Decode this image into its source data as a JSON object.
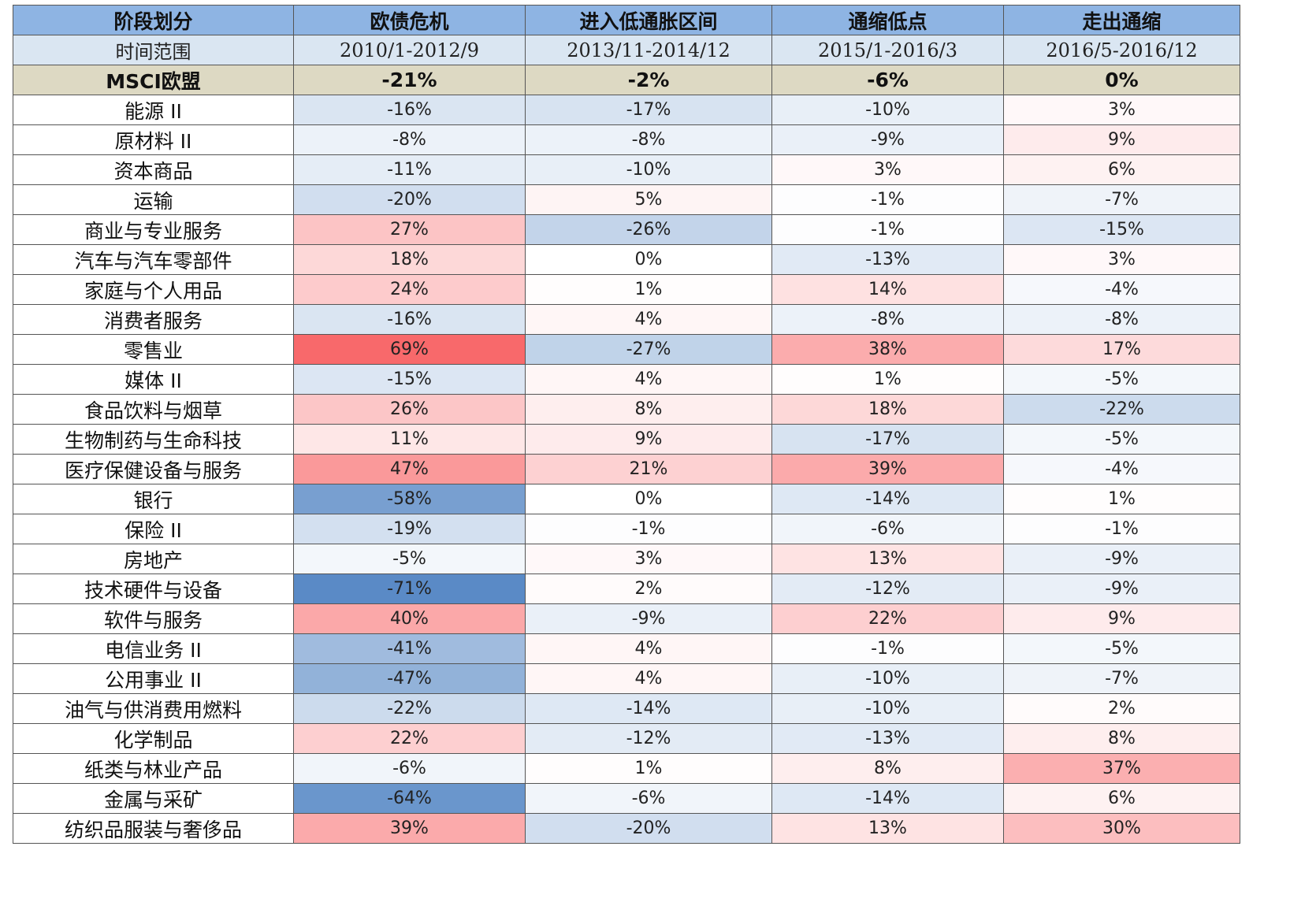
{
  "chart_data": {
    "type": "table",
    "columns": [
      "阶段划分",
      "欧债危机",
      "进入低通胀区间",
      "通缩低点",
      "走出通缩"
    ],
    "range_row": {
      "label": "时间范围",
      "values": [
        "2010/1-2012/9",
        "2013/11-2014/12",
        "2015/1-2016/3",
        "2016/5-2016/12"
      ]
    },
    "index_row": {
      "label": "MSCI欧盟",
      "values": [
        "-21%",
        "-2%",
        "-6%",
        "0%"
      ]
    },
    "rows": [
      {
        "label": "能源 II",
        "values": [
          -16,
          -17,
          -10,
          3
        ]
      },
      {
        "label": "原材料 II",
        "values": [
          -8,
          -8,
          -9,
          9
        ]
      },
      {
        "label": "资本商品",
        "values": [
          -11,
          -10,
          3,
          6
        ]
      },
      {
        "label": "运输",
        "values": [
          -20,
          5,
          -1,
          -7
        ]
      },
      {
        "label": "商业与专业服务",
        "values": [
          27,
          -26,
          -1,
          -15
        ]
      },
      {
        "label": "汽车与汽车零部件",
        "values": [
          18,
          0,
          -13,
          3
        ]
      },
      {
        "label": "家庭与个人用品",
        "values": [
          24,
          1,
          14,
          -4
        ]
      },
      {
        "label": "消费者服务",
        "values": [
          -16,
          4,
          -8,
          -8
        ]
      },
      {
        "label": "零售业",
        "values": [
          69,
          -27,
          38,
          17
        ]
      },
      {
        "label": "媒体 II",
        "values": [
          -15,
          4,
          1,
          -5
        ]
      },
      {
        "label": "食品饮料与烟草",
        "values": [
          26,
          8,
          18,
          -22
        ]
      },
      {
        "label": "生物制药与生命科技",
        "values": [
          11,
          9,
          -17,
          -5
        ]
      },
      {
        "label": "医疗保健设备与服务",
        "values": [
          47,
          21,
          39,
          -4
        ]
      },
      {
        "label": "银行",
        "values": [
          -58,
          0,
          -14,
          1
        ]
      },
      {
        "label": "保险 II",
        "values": [
          -19,
          -1,
          -6,
          -1
        ]
      },
      {
        "label": "房地产",
        "values": [
          -5,
          3,
          13,
          -9
        ]
      },
      {
        "label": "技术硬件与设备",
        "values": [
          -71,
          2,
          -12,
          -9
        ]
      },
      {
        "label": "软件与服务",
        "values": [
          40,
          -9,
          22,
          9
        ]
      },
      {
        "label": "电信业务 II",
        "values": [
          -41,
          4,
          -1,
          -5
        ]
      },
      {
        "label": "公用事业 II",
        "values": [
          -47,
          4,
          -10,
          -7
        ]
      },
      {
        "label": "油气与供消费用燃料",
        "values": [
          -22,
          -14,
          -10,
          2
        ]
      },
      {
        "label": "化学制品",
        "values": [
          22,
          -12,
          -13,
          8
        ]
      },
      {
        "label": "纸类与林业产品",
        "values": [
          -6,
          1,
          8,
          37
        ]
      },
      {
        "label": "金属与采矿",
        "values": [
          -64,
          -6,
          -14,
          6
        ]
      },
      {
        "label": "纺织品服装与奢侈品",
        "values": [
          39,
          -20,
          13,
          30
        ]
      }
    ],
    "value_unit": "%",
    "colors": {
      "header": "#8eb4e3",
      "range_row": "#dae6f2",
      "index_row": "#ddd9c3",
      "positive": "#f8696b",
      "negative": "#5a8ac6",
      "neutral": "#ffffff"
    }
  }
}
